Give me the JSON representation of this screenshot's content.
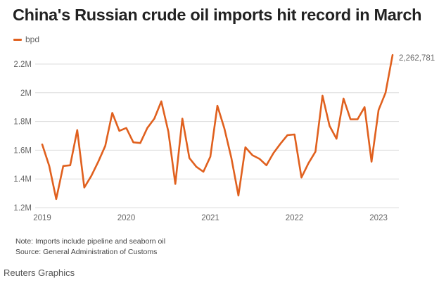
{
  "header": {
    "title": "China's Russian crude oil imports hit record in March",
    "legend_label": "bpd"
  },
  "footer": {
    "note": "Note: Imports include pipeline and seaborn oil",
    "source": "Source: General Administration of Customs",
    "credit": "Reuters Graphics"
  },
  "colors": {
    "line": "#e0601e",
    "grid": "#dcdcdc",
    "title": "#222222"
  },
  "chart_data": {
    "type": "line",
    "title": "China's Russian crude oil imports hit record in March",
    "xlabel": "",
    "ylabel": "",
    "ylim": [
      1200000,
      2200000
    ],
    "y_ticks": [
      "1.2M",
      "1.4M",
      "1.6M",
      "1.8M",
      "2M",
      "2.2M"
    ],
    "y_tick_values": [
      1200000,
      1400000,
      1600000,
      1800000,
      2000000,
      2200000
    ],
    "x_ticks": [
      "2019",
      "2020",
      "2021",
      "2022",
      "2023"
    ],
    "grid": true,
    "legend_position": "top-left",
    "end_label": "2,262,781",
    "x": [
      "2019-01",
      "2019-02",
      "2019-03",
      "2019-04",
      "2019-05",
      "2019-06",
      "2019-07",
      "2019-08",
      "2019-09",
      "2019-10",
      "2019-11",
      "2019-12",
      "2020-01",
      "2020-02",
      "2020-03",
      "2020-04",
      "2020-05",
      "2020-06",
      "2020-07",
      "2020-08",
      "2020-09",
      "2020-10",
      "2020-11",
      "2020-12",
      "2021-01",
      "2021-02",
      "2021-03",
      "2021-04",
      "2021-05",
      "2021-06",
      "2021-07",
      "2021-08",
      "2021-09",
      "2021-10",
      "2021-11",
      "2021-12",
      "2022-01",
      "2022-02",
      "2022-03",
      "2022-04",
      "2022-05",
      "2022-06",
      "2022-07",
      "2022-08",
      "2022-09",
      "2022-10",
      "2022-11",
      "2022-12",
      "2023-01",
      "2023-02",
      "2023-03"
    ],
    "series": [
      {
        "name": "bpd",
        "values": [
          1640000,
          1490000,
          1260000,
          1490000,
          1495000,
          1740000,
          1340000,
          1420000,
          1520000,
          1630000,
          1860000,
          1735000,
          1755000,
          1655000,
          1650000,
          1755000,
          1820000,
          1940000,
          1730000,
          1365000,
          1820000,
          1545000,
          1485000,
          1450000,
          1555000,
          1910000,
          1750000,
          1545000,
          1285000,
          1620000,
          1565000,
          1540000,
          1495000,
          1580000,
          1645000,
          1705000,
          1710000,
          1410000,
          1510000,
          1590000,
          1980000,
          1770000,
          1680000,
          1960000,
          1815000,
          1815000,
          1900000,
          1520000,
          1880000,
          2000000,
          2262781
        ]
      }
    ]
  }
}
